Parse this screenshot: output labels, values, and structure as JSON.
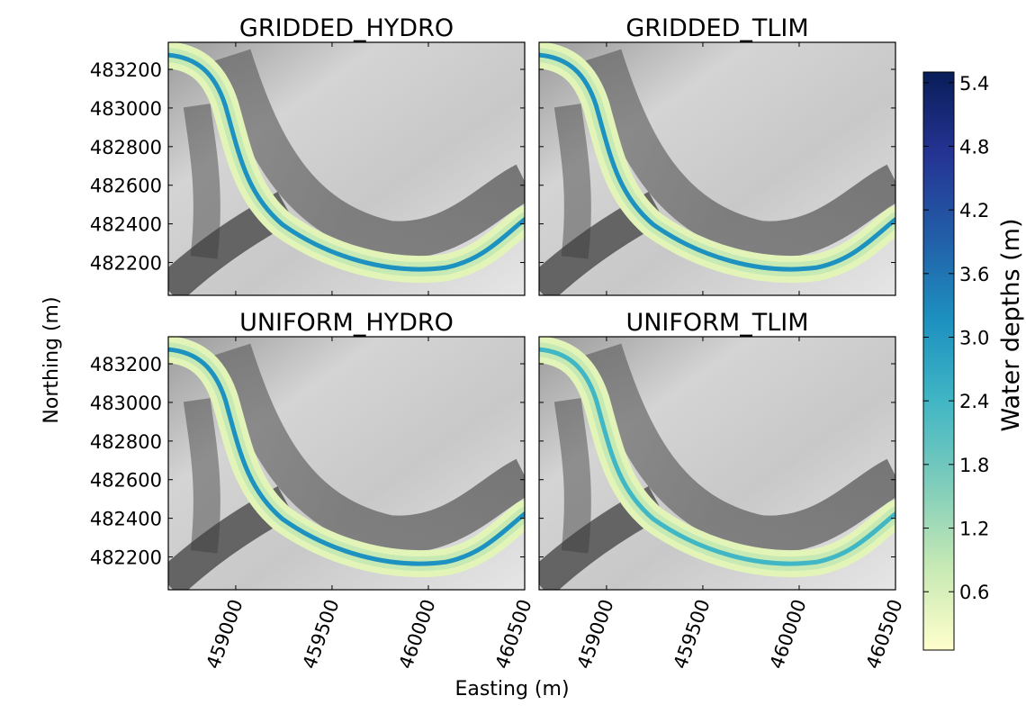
{
  "chart_data": {
    "type": "heatmap",
    "xlabel": "Easting (m)",
    "ylabel": "Northing (m)",
    "colorbar": {
      "label": "Water depths (m)",
      "ticks": [
        "0.6",
        "1.2",
        "1.8",
        "2.4",
        "3.0",
        "3.6",
        "4.2",
        "4.8",
        "5.4"
      ],
      "range": [
        0.05,
        5.5
      ],
      "colors": [
        "#ffffcc",
        "#c7e9b4",
        "#7fcdbb",
        "#41b6c4",
        "#1d91c0",
        "#225ea8",
        "#253494",
        "#081d58"
      ]
    },
    "x_ticks": [
      "459000",
      "459500",
      "460000",
      "460500"
    ],
    "x_tick_values": [
      459000,
      459500,
      460000,
      460500
    ],
    "y_ticks": [
      "483200",
      "483000",
      "482800",
      "482600",
      "482400",
      "482200"
    ],
    "y_tick_values": [
      483200,
      483000,
      482800,
      482600,
      482400,
      482200
    ],
    "xlim": [
      458650,
      460500
    ],
    "ylim": [
      482030,
      483340
    ],
    "background": "greyscale hillshade",
    "panels": [
      {
        "title": "GRIDDED_HYDRO",
        "max_depth_shown": 3.8
      },
      {
        "title": "GRIDDED_TLIM",
        "max_depth_shown": 3.6
      },
      {
        "title": "UNIFORM_HYDRO",
        "max_depth_shown": 3.6
      },
      {
        "title": "UNIFORM_TLIM",
        "max_depth_shown": 3.0
      }
    ]
  }
}
